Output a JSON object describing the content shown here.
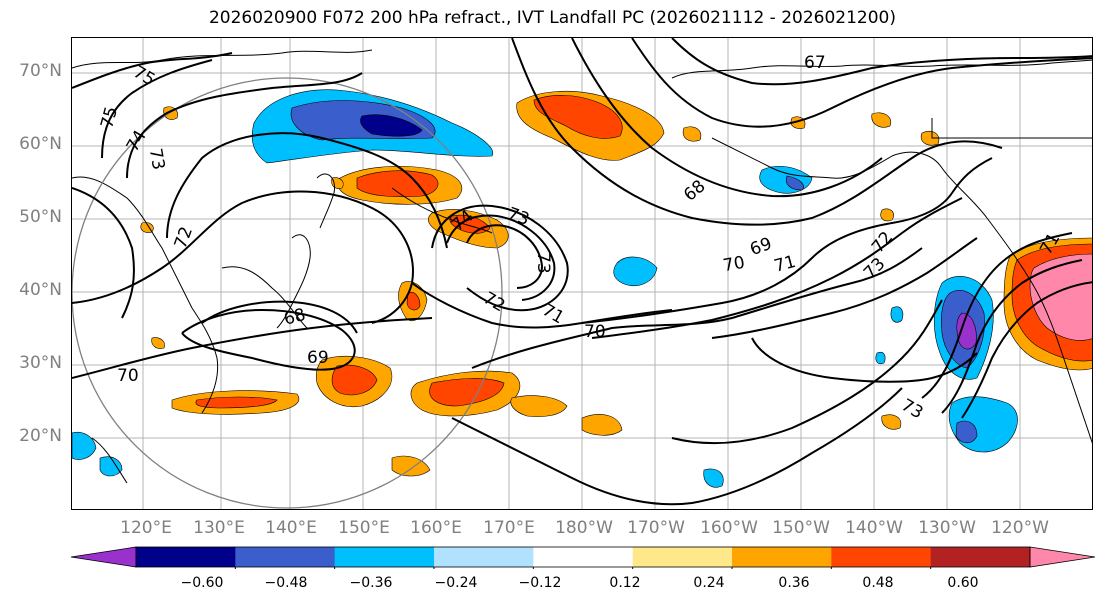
{
  "title": "2026020900 F072 200 hPa refract., IVT Landfall PC (2026021112 - 2026021200)",
  "lat_labels": [
    "70°N",
    "60°N",
    "50°N",
    "40°N",
    "30°N",
    "20°N"
  ],
  "lon_labels": [
    "120°E",
    "130°E",
    "140°E",
    "150°E",
    "160°E",
    "170°E",
    "180°W",
    "170°W",
    "160°W",
    "150°W",
    "140°W",
    "130°W",
    "120°W"
  ],
  "contour_labels": [
    {
      "text": "75"
    },
    {
      "text": "75"
    },
    {
      "text": "74"
    },
    {
      "text": "73"
    },
    {
      "text": "72"
    },
    {
      "text": "70"
    },
    {
      "text": "69"
    },
    {
      "text": "68"
    },
    {
      "text": "74"
    },
    {
      "text": "73"
    },
    {
      "text": "73"
    },
    {
      "text": "72"
    },
    {
      "text": "71"
    },
    {
      "text": "70"
    },
    {
      "text": "67"
    },
    {
      "text": "68"
    },
    {
      "text": "69"
    },
    {
      "text": "70"
    },
    {
      "text": "71"
    },
    {
      "text": "72"
    },
    {
      "text": "73"
    },
    {
      "text": "73"
    },
    {
      "text": "71"
    }
  ],
  "colorbar": {
    "ticks": [
      "−0.60",
      "−0.48",
      "−0.36",
      "−0.24",
      "−0.12",
      "0.12",
      "0.24",
      "0.36",
      "0.48",
      "0.60"
    ],
    "colors": [
      "#9932cc",
      "#00008b",
      "#3a5fcd",
      "#00bfff",
      "#b0e2ff",
      "#ffffff",
      "#ffe88a",
      "#ffa500",
      "#ff4500",
      "#b22222",
      "#ff88aa"
    ],
    "extend": "both"
  },
  "colors": {
    "neg_strong": "#00008b",
    "neg_blue": "#3a5fcd",
    "neg_cyan": "#00bfff",
    "neg_light": "#b0e2ff",
    "neg_extreme": "#9932cc",
    "pos_yellow": "#ffe88a",
    "pos_orange": "#ffa500",
    "pos_red": "#ff4500",
    "pos_darkred": "#b22222",
    "pos_pink": "#ff88aa"
  }
}
